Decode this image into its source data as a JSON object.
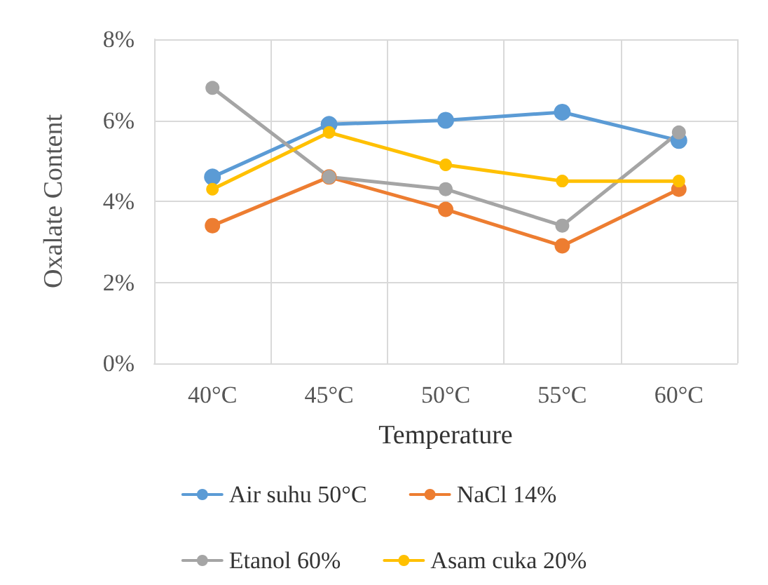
{
  "chart_data": {
    "type": "line",
    "xlabel": "Temperature",
    "ylabel": "Oxalate Content",
    "categories": [
      "40°C",
      "45°C",
      "50°C",
      "55°C",
      "60°C"
    ],
    "series": [
      {
        "name": "Air suhu 50°C",
        "color": "#5b9bd5",
        "values": [
          4.6,
          5.9,
          6.0,
          6.2,
          5.5
        ]
      },
      {
        "name": "NaCl 14%",
        "color": "#ed7d31",
        "values": [
          3.4,
          4.6,
          3.8,
          2.9,
          4.3
        ]
      },
      {
        "name": "Etanol 60%",
        "color": "#a5a5a5",
        "values": [
          6.8,
          4.6,
          4.3,
          3.4,
          5.7
        ]
      },
      {
        "name": "Asam cuka 20%",
        "color": "#ffc000",
        "values": [
          4.3,
          5.7,
          4.9,
          4.5,
          4.5
        ]
      }
    ],
    "ylim": [
      0,
      8
    ],
    "yticks": [
      {
        "value": 0,
        "label": "0%"
      },
      {
        "value": 2,
        "label": "2%"
      },
      {
        "value": 4,
        "label": "4%"
      },
      {
        "value": 6,
        "label": "6%"
      },
      {
        "value": 8,
        "label": "8%"
      }
    ],
    "grid": true,
    "legend": "bottom",
    "marker": "circle",
    "line_style": "solid"
  }
}
